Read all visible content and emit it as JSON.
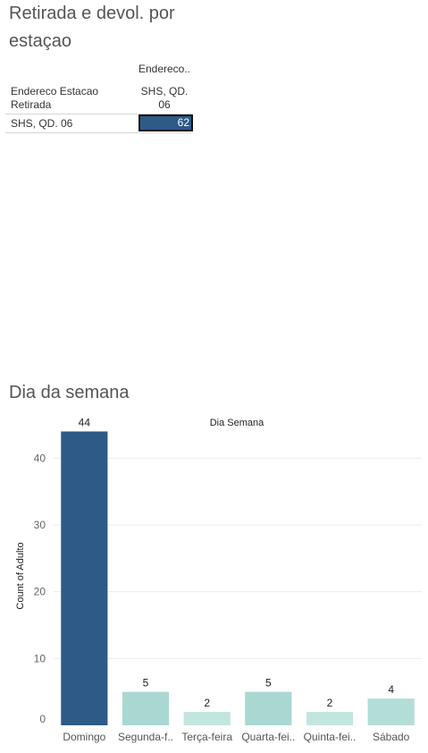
{
  "crosstab": {
    "title": "Retirada e devol. por estaçao",
    "column_header": "Endereco..",
    "row_header": "Endereco Estacao Retirada",
    "column_value": "SHS, QD. 06",
    "row_value": "SHS, QD. 06",
    "cell_value": "62",
    "cell_color": "#2d5a87"
  },
  "chart_data": {
    "type": "bar",
    "title": "Dia da semana",
    "column_header": "Dia Semana",
    "ylabel": "Count of Adulto",
    "xlabel": "",
    "categories": [
      "Domingo",
      "Segunda-f..",
      "Terça-feira",
      "Quarta-fei..",
      "Quinta-fei..",
      "Sábado"
    ],
    "values": [
      44,
      5,
      2,
      5,
      2,
      4
    ],
    "ylim": [
      0,
      45
    ],
    "yticks": [
      0,
      10,
      20,
      30,
      40
    ],
    "grid": true,
    "colors": [
      "#2d5a87",
      "#a9d8d2",
      "#c2e6df",
      "#a9d8d2",
      "#c2e6df",
      "#b3ddd7"
    ]
  }
}
